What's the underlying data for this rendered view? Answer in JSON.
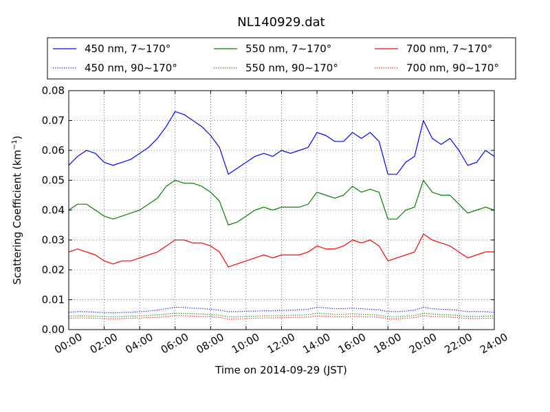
{
  "chart_data": {
    "type": "line",
    "title": "NL140929.dat",
    "xlabel": "Time on 2014-09-29 (JST)",
    "ylabel": "Scattering Coefficient (km",
    "ylabel_exponent": "−1",
    "ylabel_suffix": ")",
    "xlim": [
      0,
      24
    ],
    "ylim": [
      0,
      0.08
    ],
    "x_ticks": [
      0,
      2,
      4,
      6,
      8,
      10,
      12,
      14,
      16,
      18,
      20,
      22,
      24
    ],
    "x_tick_labels": [
      "00:00",
      "02:00",
      "04:00",
      "06:00",
      "08:00",
      "10:00",
      "12:00",
      "14:00",
      "16:00",
      "18:00",
      "20:00",
      "22:00",
      "24:00"
    ],
    "y_ticks": [
      0,
      0.01,
      0.02,
      0.03,
      0.04,
      0.05,
      0.06,
      0.07,
      0.08
    ],
    "y_tick_labels": [
      "0.00",
      "0.01",
      "0.02",
      "0.03",
      "0.04",
      "0.05",
      "0.06",
      "0.07",
      "0.08"
    ],
    "grid": true,
    "legend_position": "top",
    "x": [
      0,
      0.5,
      1,
      1.5,
      2,
      2.5,
      3,
      3.5,
      4,
      4.5,
      5,
      5.5,
      6,
      6.5,
      7,
      7.5,
      8,
      8.5,
      9,
      9.5,
      10,
      10.5,
      11,
      11.5,
      12,
      12.5,
      13,
      13.5,
      14,
      14.5,
      15,
      15.5,
      16,
      16.5,
      17,
      17.5,
      18,
      18.5,
      19,
      19.5,
      20,
      20.5,
      21,
      21.5,
      22,
      22.5,
      23,
      23.5,
      24
    ],
    "series": [
      {
        "name": "450 nm, 7∼170°",
        "color": "#0000ff",
        "style": "solid",
        "values": [
          0.055,
          0.058,
          0.06,
          0.059,
          0.056,
          0.055,
          0.056,
          0.057,
          0.059,
          0.061,
          0.064,
          0.068,
          0.073,
          0.072,
          0.07,
          0.068,
          0.065,
          0.061,
          0.052,
          0.054,
          0.056,
          0.058,
          0.059,
          0.058,
          0.06,
          0.059,
          0.06,
          0.061,
          0.066,
          0.065,
          0.063,
          0.063,
          0.066,
          0.064,
          0.066,
          0.063,
          0.052,
          0.052,
          0.056,
          0.058,
          0.07,
          0.064,
          0.062,
          0.064,
          0.06,
          0.055,
          0.056,
          0.06,
          0.058
        ]
      },
      {
        "name": "550 nm, 7∼170°",
        "color": "#008000",
        "style": "solid",
        "values": [
          0.04,
          0.042,
          0.042,
          0.04,
          0.038,
          0.037,
          0.038,
          0.039,
          0.04,
          0.042,
          0.044,
          0.048,
          0.05,
          0.049,
          0.049,
          0.048,
          0.046,
          0.043,
          0.035,
          0.036,
          0.038,
          0.04,
          0.041,
          0.04,
          0.041,
          0.041,
          0.041,
          0.042,
          0.046,
          0.045,
          0.044,
          0.045,
          0.048,
          0.046,
          0.047,
          0.046,
          0.037,
          0.037,
          0.04,
          0.041,
          0.05,
          0.046,
          0.045,
          0.045,
          0.042,
          0.039,
          0.04,
          0.041,
          0.04
        ]
      },
      {
        "name": "700 nm, 7∼170°",
        "color": "#ff0000",
        "style": "solid",
        "values": [
          0.026,
          0.027,
          0.026,
          0.025,
          0.023,
          0.022,
          0.023,
          0.023,
          0.024,
          0.025,
          0.026,
          0.028,
          0.03,
          0.03,
          0.029,
          0.029,
          0.028,
          0.026,
          0.021,
          0.022,
          0.023,
          0.024,
          0.025,
          0.024,
          0.025,
          0.025,
          0.025,
          0.026,
          0.028,
          0.027,
          0.027,
          0.028,
          0.03,
          0.029,
          0.03,
          0.028,
          0.023,
          0.024,
          0.025,
          0.026,
          0.032,
          0.03,
          0.029,
          0.028,
          0.026,
          0.024,
          0.025,
          0.026,
          0.026
        ]
      },
      {
        "name": "450 nm, 90∼170°",
        "color": "#0000ff",
        "style": "dotted",
        "values": [
          0.0058,
          0.006,
          0.006,
          0.0058,
          0.0057,
          0.0056,
          0.0057,
          0.0058,
          0.006,
          0.0062,
          0.0065,
          0.007,
          0.0075,
          0.0074,
          0.0072,
          0.0071,
          0.0068,
          0.0065,
          0.006,
          0.006,
          0.0061,
          0.0062,
          0.0063,
          0.0063,
          0.0064,
          0.0065,
          0.0066,
          0.0068,
          0.0075,
          0.0073,
          0.007,
          0.007,
          0.0072,
          0.007,
          0.0068,
          0.0066,
          0.006,
          0.006,
          0.0062,
          0.0065,
          0.0075,
          0.007,
          0.0068,
          0.0067,
          0.0064,
          0.006,
          0.006,
          0.006,
          0.0058
        ]
      },
      {
        "name": "550 nm, 90∼170°",
        "color": "#008000",
        "style": "dotted",
        "values": [
          0.0045,
          0.0046,
          0.0046,
          0.0045,
          0.0044,
          0.0043,
          0.0044,
          0.0045,
          0.0046,
          0.0047,
          0.0049,
          0.0052,
          0.0055,
          0.0054,
          0.0053,
          0.0052,
          0.005,
          0.0048,
          0.0043,
          0.0043,
          0.0044,
          0.0045,
          0.0046,
          0.0046,
          0.0047,
          0.0048,
          0.0048,
          0.005,
          0.0055,
          0.0053,
          0.0051,
          0.0051,
          0.0053,
          0.0051,
          0.005,
          0.0048,
          0.0043,
          0.0043,
          0.0045,
          0.0047,
          0.0055,
          0.0052,
          0.005,
          0.0049,
          0.0047,
          0.0044,
          0.0044,
          0.0045,
          0.0045
        ]
      },
      {
        "name": "700 nm, 90∼170°",
        "color": "#ff0000",
        "style": "dotted",
        "values": [
          0.0038,
          0.0039,
          0.0039,
          0.0038,
          0.0037,
          0.0036,
          0.0037,
          0.0038,
          0.0039,
          0.004,
          0.0041,
          0.0044,
          0.0047,
          0.0046,
          0.0045,
          0.0044,
          0.0043,
          0.0041,
          0.0035,
          0.0036,
          0.0037,
          0.0038,
          0.0039,
          0.0039,
          0.004,
          0.0041,
          0.0041,
          0.0042,
          0.0046,
          0.0045,
          0.0043,
          0.0043,
          0.0045,
          0.0043,
          0.0043,
          0.0041,
          0.0036,
          0.0036,
          0.0038,
          0.004,
          0.0047,
          0.0044,
          0.0043,
          0.0042,
          0.004,
          0.0037,
          0.0037,
          0.0038,
          0.0038
        ]
      }
    ]
  }
}
